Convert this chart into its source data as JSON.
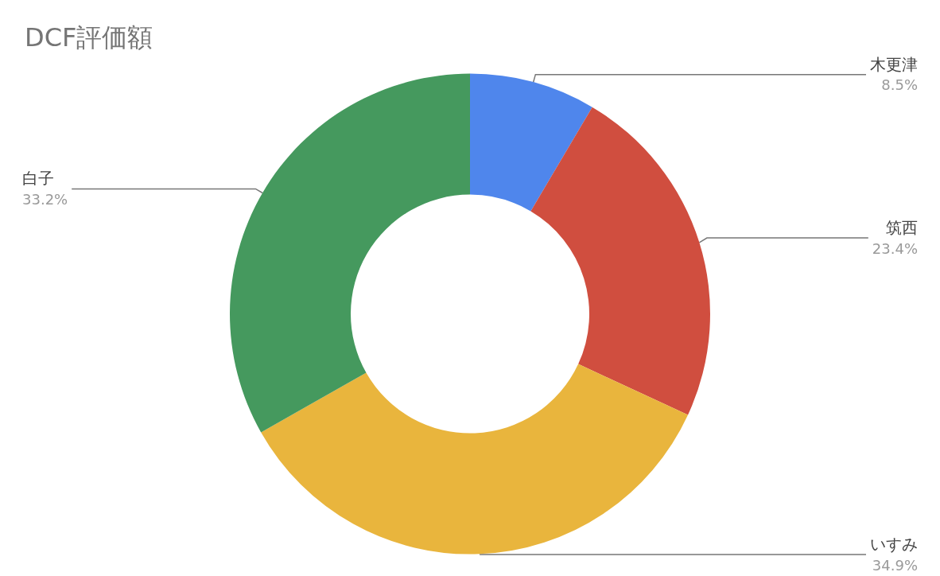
{
  "chart_data": {
    "type": "donut",
    "title": "DCF評価額",
    "categories": [
      "木更津",
      "筑西",
      "いすみ",
      "白子"
    ],
    "values": [
      8.5,
      23.4,
      34.9,
      33.2
    ],
    "colors": [
      "#4f86ec",
      "#d04e3f",
      "#e9b53d",
      "#45995e"
    ],
    "value_labels": [
      "8.5%",
      "23.4%",
      "34.9%",
      "33.2%"
    ]
  }
}
